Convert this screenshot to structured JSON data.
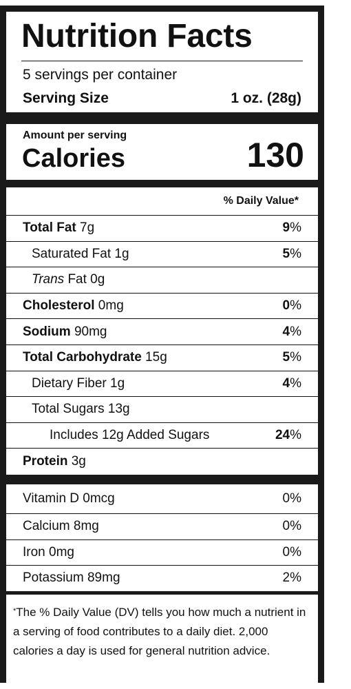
{
  "header": {
    "title": "Nutrition Facts",
    "servings": "5 servings per container",
    "serving_size_label": "Serving Size",
    "serving_size_value": "1 oz. (28g)"
  },
  "calories": {
    "amount_label": "Amount per serving",
    "label": "Calories",
    "value": "130"
  },
  "dv_header": "% Daily Value*",
  "nutrients": [
    {
      "name": "Total Fat",
      "amount": " 7g",
      "pct": "9",
      "sign": "%"
    },
    {
      "name": "Saturated Fat 1g",
      "pct": "5",
      "sign": "%"
    },
    {
      "name_italic": "Trans",
      "name_rest": " Fat 0g"
    },
    {
      "name": "Cholesterol",
      "amount": " 0mg",
      "pct": "0",
      "sign": "%"
    },
    {
      "name": "Sodium",
      "amount": " 90mg",
      "pct": "4",
      "sign": "%"
    },
    {
      "name": "Total Carbohydrate",
      "amount": " 15g",
      "pct": "5",
      "sign": "%"
    },
    {
      "name": "Dietary Fiber 1g",
      "pct": "4",
      "sign": "%"
    },
    {
      "name": "Total Sugars 13g"
    },
    {
      "name": "Includes 12g Added Sugars",
      "pct": "24",
      "sign": "%"
    },
    {
      "name": "Protein",
      "amount": " 3g"
    }
  ],
  "vitamins": [
    {
      "name": "Vitamin D 0mcg",
      "pct": "0%"
    },
    {
      "name": "Calcium 8mg",
      "pct": "0%"
    },
    {
      "name": "Iron 0mg",
      "pct": "0%"
    },
    {
      "name": "Potassium 89mg",
      "pct": "2%"
    }
  ],
  "footnote": {
    "marker": "*",
    "text": "The % Daily Value (DV) tells you how much a nutrient in a serving of food contributes to a daily diet. 2,000 calories a day is used for general nutrition advice."
  }
}
